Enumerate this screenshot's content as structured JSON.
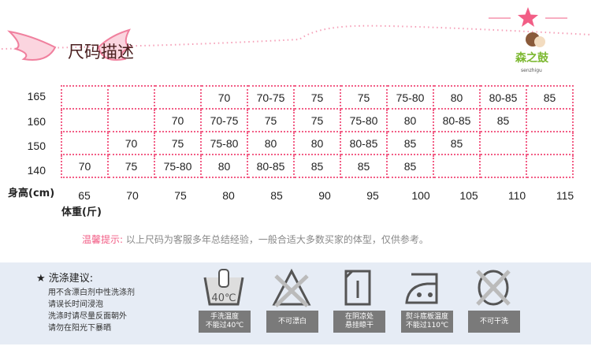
{
  "header": {
    "title": "尺码描述",
    "brand": "森之鼓",
    "brand_sub": "senzhigu"
  },
  "table": {
    "row_axis_label": "身高(cm)",
    "col_axis_label": "体重(斤)",
    "columns": [
      "65",
      "70",
      "75",
      "80",
      "85",
      "90",
      "95",
      "100",
      "105",
      "110",
      "115"
    ],
    "rows": [
      {
        "height": "165",
        "cells": [
          "",
          "",
          "",
          "70",
          "70-75",
          "75",
          "75",
          "75-80",
          "80",
          "80-85",
          "85"
        ]
      },
      {
        "height": "160",
        "cells": [
          "",
          "",
          "70",
          "70-75",
          "75",
          "75",
          "75-80",
          "80",
          "80-85",
          "85",
          ""
        ]
      },
      {
        "height": "150",
        "cells": [
          "",
          "70",
          "75",
          "75-80",
          "80",
          "80",
          "80-85",
          "85",
          "85",
          "",
          ""
        ]
      },
      {
        "height": "140",
        "cells": [
          "70",
          "75",
          "75-80",
          "80",
          "80-85",
          "85",
          "85",
          "85",
          "",
          "",
          ""
        ]
      }
    ]
  },
  "tip": {
    "label": "温馨提示:",
    "text": "以上尺码为客服多年总结经验，一般合适大多数买家的体型，仅供参考。"
  },
  "care": {
    "title": "洗涤建议:",
    "lines": [
      "用不含漂白剂中性洗涤剂",
      "请误长时间浸泡",
      "洗涤时请尽量反面朝外",
      "请勿在阳光下暴晒"
    ],
    "icons": [
      {
        "icon": "hand-wash-icon",
        "text": "40℃",
        "label1": "手洗温度",
        "label2": "不能过40℃"
      },
      {
        "icon": "no-bleach-icon",
        "label1": "不可漂白",
        "label2": ""
      },
      {
        "icon": "dry-in-shade-icon",
        "label1": "在阴凉处",
        "label2": "悬挂晾干"
      },
      {
        "icon": "iron-icon",
        "label1": "熨斗底板温度",
        "label2": "不能过110℃"
      },
      {
        "icon": "no-dry-clean-icon",
        "label1": "不可干洗",
        "label2": ""
      }
    ]
  },
  "colors": {
    "accent": "#f25e86",
    "band": "#e6ecf5",
    "label_bg": "#7a7a7a"
  }
}
